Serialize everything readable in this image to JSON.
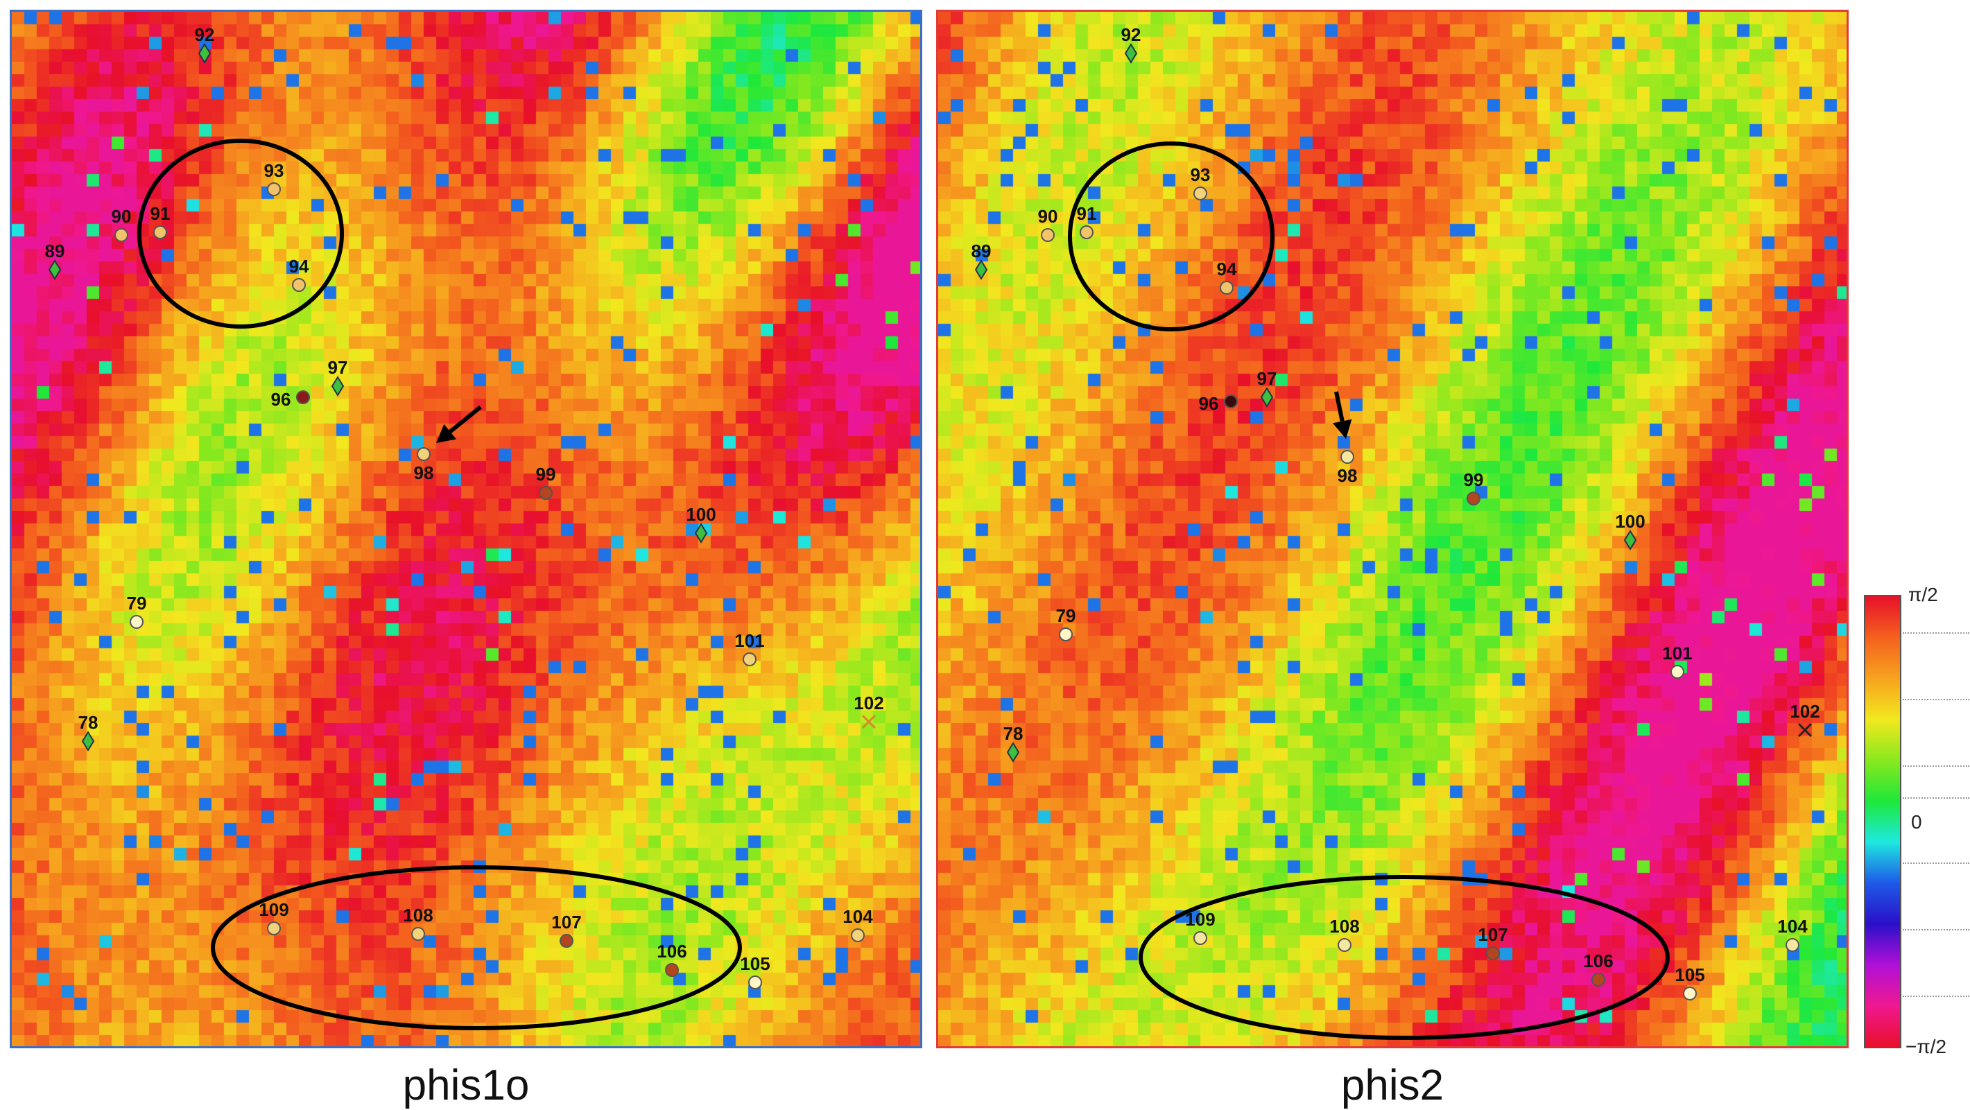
{
  "panels": [
    {
      "caption": "phis1o",
      "border_color": "#3b6fc4",
      "arrow_target": "98",
      "points": [
        {
          "id": "92",
          "marker": "diamond",
          "fill": "#3fbf3f"
        },
        {
          "id": "93",
          "marker": "circle",
          "fill": "#f2c46a"
        },
        {
          "id": "90",
          "marker": "circle",
          "fill": "#f2c46a"
        },
        {
          "id": "91",
          "marker": "circle",
          "fill": "#f2c46a"
        },
        {
          "id": "89",
          "marker": "diamond",
          "fill": "#3fbf3f"
        },
        {
          "id": "94",
          "marker": "circle",
          "fill": "#f2c46a"
        },
        {
          "id": "97",
          "marker": "diamond",
          "fill": "#3fbf3f"
        },
        {
          "id": "96",
          "marker": "circle",
          "fill": "#8b1a1a"
        },
        {
          "id": "98",
          "marker": "circle",
          "fill": "#f2d27a"
        },
        {
          "id": "99",
          "marker": "circle",
          "fill": "#b4451f"
        },
        {
          "id": "100",
          "marker": "diamond",
          "fill": "#3fbf3f"
        },
        {
          "id": "79",
          "marker": "circle",
          "fill": "#fff6c8"
        },
        {
          "id": "101",
          "marker": "circle",
          "fill": "#f2d27a"
        },
        {
          "id": "102",
          "marker": "cross",
          "fill": "#d08a2a"
        },
        {
          "id": "78",
          "marker": "diamond",
          "fill": "#3fbf3f"
        },
        {
          "id": "109",
          "marker": "circle",
          "fill": "#f2d27a"
        },
        {
          "id": "108",
          "marker": "circle",
          "fill": "#f2d27a"
        },
        {
          "id": "107",
          "marker": "circle",
          "fill": "#b4451f"
        },
        {
          "id": "106",
          "marker": "circle",
          "fill": "#b4451f"
        },
        {
          "id": "104",
          "marker": "circle",
          "fill": "#f2d27a"
        },
        {
          "id": "105",
          "marker": "circle",
          "fill": "#fff6c8"
        }
      ]
    },
    {
      "caption": "phis2",
      "border_color": "#e03b3b",
      "arrow_target": "98",
      "points": [
        {
          "id": "92",
          "marker": "diamond",
          "fill": "#3fbf3f"
        },
        {
          "id": "93",
          "marker": "circle",
          "fill": "#f2d27a"
        },
        {
          "id": "90",
          "marker": "circle",
          "fill": "#f2c46a"
        },
        {
          "id": "91",
          "marker": "circle",
          "fill": "#f2c46a"
        },
        {
          "id": "89",
          "marker": "diamond",
          "fill": "#3fbf3f"
        },
        {
          "id": "94",
          "marker": "circle",
          "fill": "#f2c46a"
        },
        {
          "id": "97",
          "marker": "diamond",
          "fill": "#3fbf3f"
        },
        {
          "id": "96",
          "marker": "circle",
          "fill": "#3a0a0a"
        },
        {
          "id": "98",
          "marker": "circle",
          "fill": "#f5e6a0"
        },
        {
          "id": "99",
          "marker": "circle",
          "fill": "#b4451f"
        },
        {
          "id": "100",
          "marker": "diamond",
          "fill": "#3fbf3f"
        },
        {
          "id": "79",
          "marker": "circle",
          "fill": "#fff6c8"
        },
        {
          "id": "101",
          "marker": "circle",
          "fill": "#fff6c8"
        },
        {
          "id": "102",
          "marker": "cross",
          "fill": "#222222"
        },
        {
          "id": "78",
          "marker": "diamond",
          "fill": "#3fbf3f"
        },
        {
          "id": "109",
          "marker": "circle",
          "fill": "#f5e6a0"
        },
        {
          "id": "108",
          "marker": "circle",
          "fill": "#f5e6a0"
        },
        {
          "id": "107",
          "marker": "circle",
          "fill": "#b4451f"
        },
        {
          "id": "106",
          "marker": "circle",
          "fill": "#b4451f"
        },
        {
          "id": "104",
          "marker": "circle",
          "fill": "#f5e6a0"
        },
        {
          "id": "105",
          "marker": "circle",
          "fill": "#fff6c8"
        }
      ]
    }
  ],
  "colorbar": {
    "max_label": "π/2",
    "mid_label": "0",
    "min_label": "−π/2",
    "colors": [
      "#e8102a",
      "#f4601e",
      "#f7a21e",
      "#f2e81e",
      "#8ae81e",
      "#1ee83a",
      "#1ee8e0",
      "#1e5ae8",
      "#2a10c8",
      "#b010d8",
      "#f01890",
      "#e8102a"
    ]
  },
  "chart_data": [
    {
      "type": "heatmap",
      "title": "phis1o",
      "zlim_labels": [
        "−π/2",
        "0",
        "π/2"
      ],
      "annotated_points": [
        "78",
        "79",
        "89",
        "90",
        "91",
        "92",
        "93",
        "94",
        "96",
        "97",
        "98",
        "99",
        "100",
        "101",
        "102",
        "104",
        "105",
        "106",
        "107",
        "108",
        "109"
      ],
      "highlight_ellipses": 2,
      "arrow_points_to": "98"
    },
    {
      "type": "heatmap",
      "title": "phis2",
      "zlim_labels": [
        "−π/2",
        "0",
        "π/2"
      ],
      "annotated_points": [
        "78",
        "79",
        "89",
        "90",
        "91",
        "92",
        "93",
        "94",
        "96",
        "97",
        "98",
        "99",
        "100",
        "101",
        "102",
        "104",
        "105",
        "106",
        "107",
        "108",
        "109"
      ],
      "highlight_ellipses": 2,
      "arrow_points_to": "98"
    }
  ]
}
